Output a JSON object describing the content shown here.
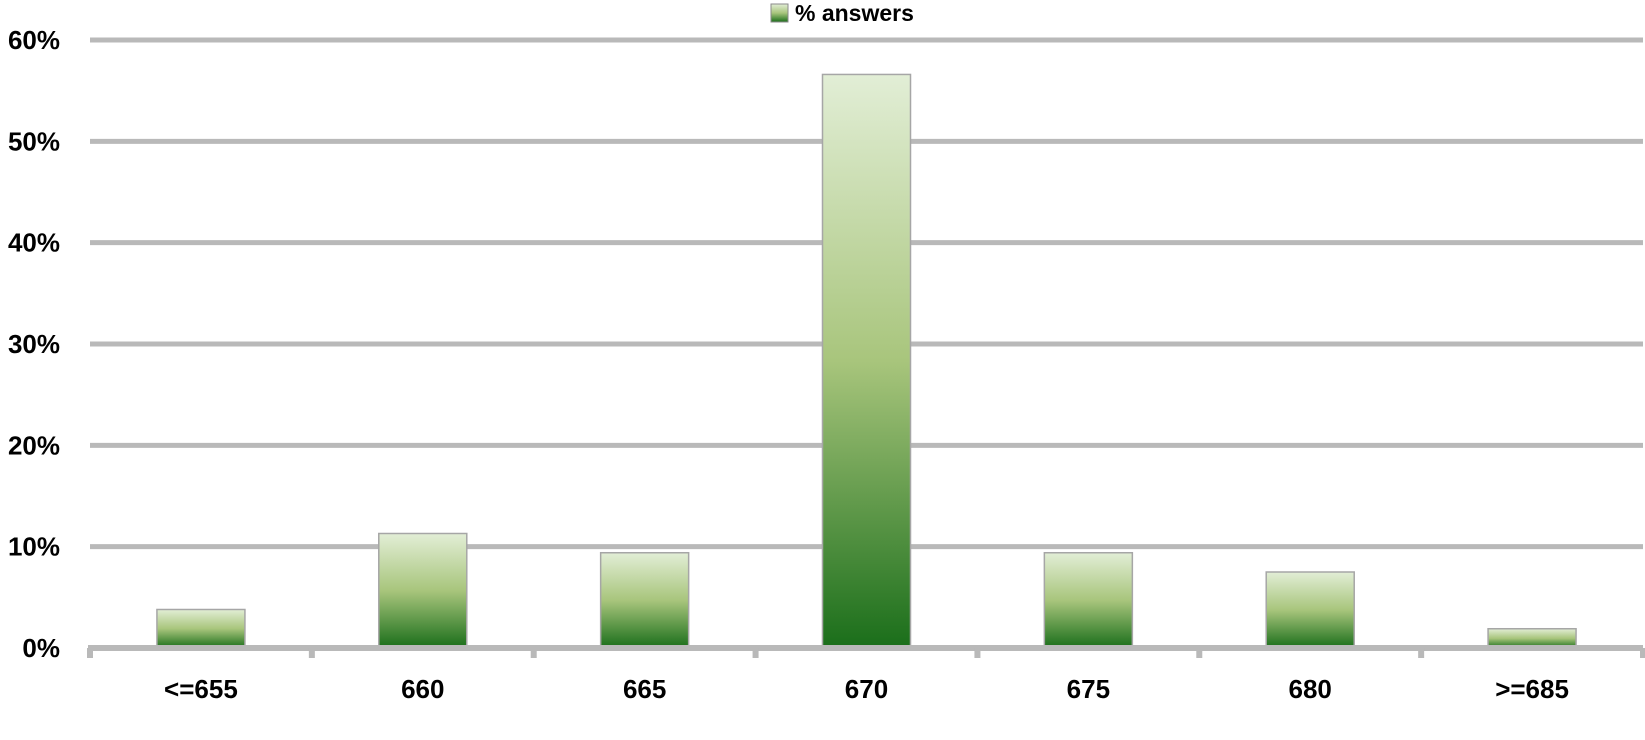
{
  "chart_data": {
    "type": "bar",
    "categories": [
      "<=655",
      "660",
      "665",
      "670",
      "675",
      "680",
      ">=685"
    ],
    "series": [
      {
        "name": "% answers",
        "values": [
          3.8,
          11.3,
          9.4,
          56.6,
          9.4,
          7.5,
          1.9
        ]
      }
    ],
    "ylim": [
      0,
      60
    ],
    "yticks": [
      "0%",
      "10%",
      "20%",
      "30%",
      "40%",
      "50%",
      "60%"
    ],
    "grid": true,
    "legend_position": "top-center",
    "colors": {
      "bar_top": "#e2eed6",
      "bar_mid": "#a8c57c",
      "bar_bottom": "#1a6e1a",
      "grid": "#b9b9b9",
      "bar_border": "#a6a6a6"
    }
  }
}
